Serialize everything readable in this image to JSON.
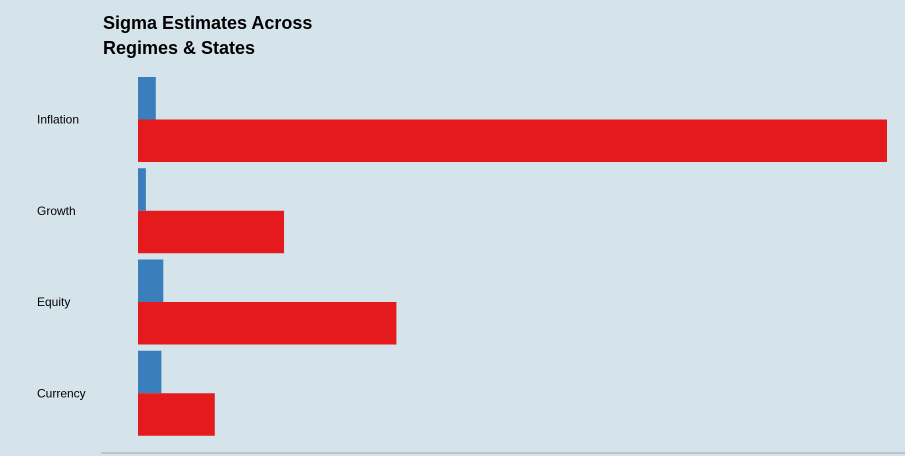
{
  "chart_data": {
    "type": "bar",
    "orientation": "horizontal",
    "title_lines": [
      "Sigma Estimates Across",
      "Regimes & States"
    ],
    "categories": [
      "Inflation",
      "Growth",
      "Equity",
      "Currency"
    ],
    "series": [
      {
        "color": "#3a7fbc",
        "values": [
          0.095,
          0.042,
          0.135,
          0.125
        ]
      },
      {
        "color": "#e41a1c",
        "values": [
          4.0,
          0.78,
          1.38,
          0.41
        ]
      }
    ],
    "xlim": [
      0,
      4.0
    ],
    "grid": false,
    "legend": "none"
  },
  "colors": {
    "background": "#d5e3eb",
    "axis": "#a9a9a9"
  }
}
